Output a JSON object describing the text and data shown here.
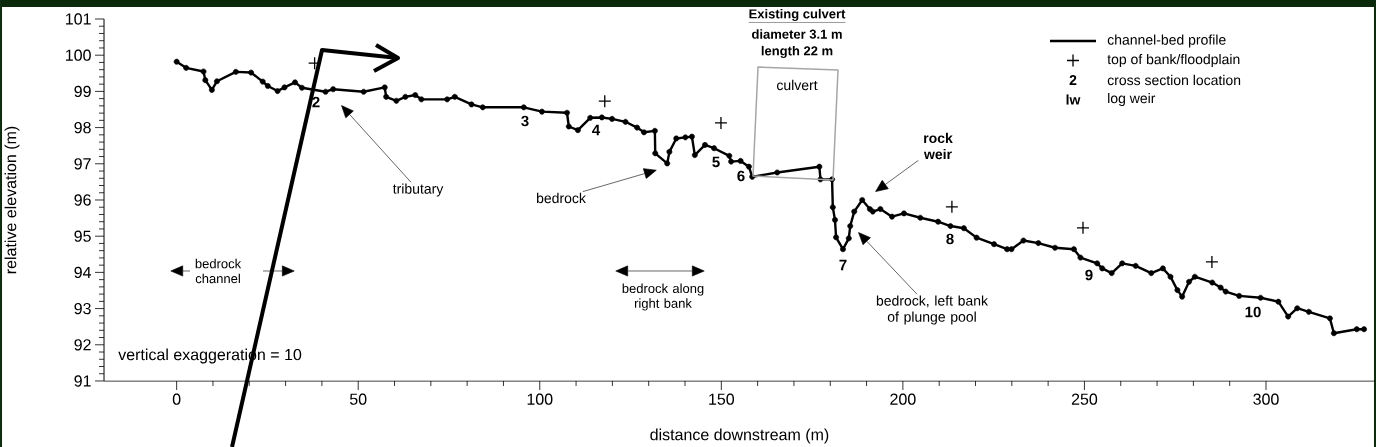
{
  "chart_data": {
    "type": "line",
    "xlabel": "distance downstream (m)",
    "ylabel": "relative elevation (m)",
    "xlim": [
      -20,
      330
    ],
    "ylim": [
      91,
      101
    ],
    "xticks": [
      0,
      50,
      100,
      150,
      200,
      250,
      300
    ],
    "yticks": [
      91,
      92,
      93,
      94,
      95,
      96,
      97,
      98,
      99,
      100,
      101
    ],
    "legend": "top right",
    "grid": false,
    "series": [
      {
        "name": "channel-bed profile",
        "marker": "circle",
        "color": "#000000",
        "x": [
          0,
          2.6,
          7.4,
          7.9,
          9.7,
          11.1,
          16.3,
          20.5,
          23.7,
          25.1,
          27.8,
          29.7,
          32.6,
          34.5,
          37.3,
          41,
          43.1,
          51.5,
          57.3,
          57.7,
          60.5,
          63,
          65.7,
          67.4,
          74.5,
          76.6,
          81.2,
          84.3,
          95.6,
          100.6,
          107.5,
          108,
          110.5,
          113.9,
          117.1,
          119.9,
          123.6,
          126.8,
          128.7,
          131.7,
          131.8,
          135.1,
          135.7,
          137.6,
          140.1,
          141.9,
          142.7,
          145.5,
          148,
          152.2,
          152.7,
          155.3,
          157.6,
          158.5,
          165.4,
          177,
          177.3,
          180.5,
          180.7,
          181.3,
          181.6,
          183.5,
          185.1,
          185.5,
          186.6,
          188.8,
          190.9,
          191.7,
          193.8,
          197,
          200.3,
          204.8,
          209.7,
          213.1,
          216.8,
          220.3,
          225.1,
          228.7,
          229.9,
          233.2,
          237.3,
          241.9,
          247.1,
          248.9,
          253.5,
          254.9,
          257.5,
          260.4,
          264.1,
          268.4,
          271.6,
          273.7,
          275.6,
          276.9,
          278.8,
          280.4,
          285.2,
          287.5,
          288.9,
          292.6,
          298.5,
          303.4,
          306.1,
          308.6,
          311.8,
          317.6,
          318.7,
          325,
          327
        ],
        "values": [
          99.82,
          99.65,
          99.55,
          99.31,
          99.04,
          99.28,
          99.54,
          99.52,
          99.27,
          99.15,
          99.01,
          99.11,
          99.25,
          99.1,
          null,
          98.99,
          99.06,
          98.99,
          99.11,
          98.85,
          98.74,
          98.85,
          98.9,
          98.78,
          98.78,
          98.85,
          98.64,
          98.56,
          98.56,
          98.44,
          98.41,
          98.03,
          97.93,
          98.27,
          98.28,
          98.24,
          98.16,
          98.0,
          97.87,
          97.91,
          97.29,
          97.01,
          97.33,
          97.7,
          97.73,
          97.75,
          97.24,
          97.52,
          97.43,
          97.22,
          97.06,
          97.08,
          96.92,
          96.64,
          96.76,
          96.92,
          96.57,
          96.57,
          95.8,
          95.45,
          94.97,
          94.64,
          94.94,
          95.28,
          95.68,
          96.0,
          95.75,
          95.68,
          95.75,
          95.54,
          95.63,
          95.51,
          95.4,
          95.28,
          95.22,
          94.96,
          94.78,
          94.64,
          94.64,
          94.88,
          94.81,
          94.68,
          94.64,
          94.41,
          94.25,
          94.11,
          93.98,
          94.25,
          94.18,
          93.98,
          94.11,
          93.88,
          93.51,
          93.33,
          93.74,
          93.88,
          93.72,
          93.58,
          93.47,
          93.35,
          93.3,
          93.19,
          92.78,
          93.01,
          92.91,
          92.73,
          92.32,
          92.43,
          92.43
        ]
      },
      {
        "name": "top of bank/floodplain",
        "type": "scatter",
        "marker": "cross",
        "color": "#000000",
        "x": [
          38,
          117.9,
          149.9,
          213.5,
          249.6,
          285.1
        ],
        "values": [
          99.78,
          98.73,
          98.13,
          95.81,
          95.23,
          94.29
        ]
      }
    ],
    "annotations": [
      "2",
      "3",
      "4",
      "5",
      "6",
      "7",
      "8",
      "9",
      "10",
      "culvert",
      "tributary",
      "bedrock",
      "rock weir",
      "bedrock, left bank of plunge pool",
      "Existing culvert",
      "diameter 3.1 m",
      "length 22 m",
      "bedrock channel",
      "bedrock along right bank",
      "vertical exaggeration = 10",
      "2",
      "cross section location",
      "lw",
      "log weir"
    ]
  }
}
